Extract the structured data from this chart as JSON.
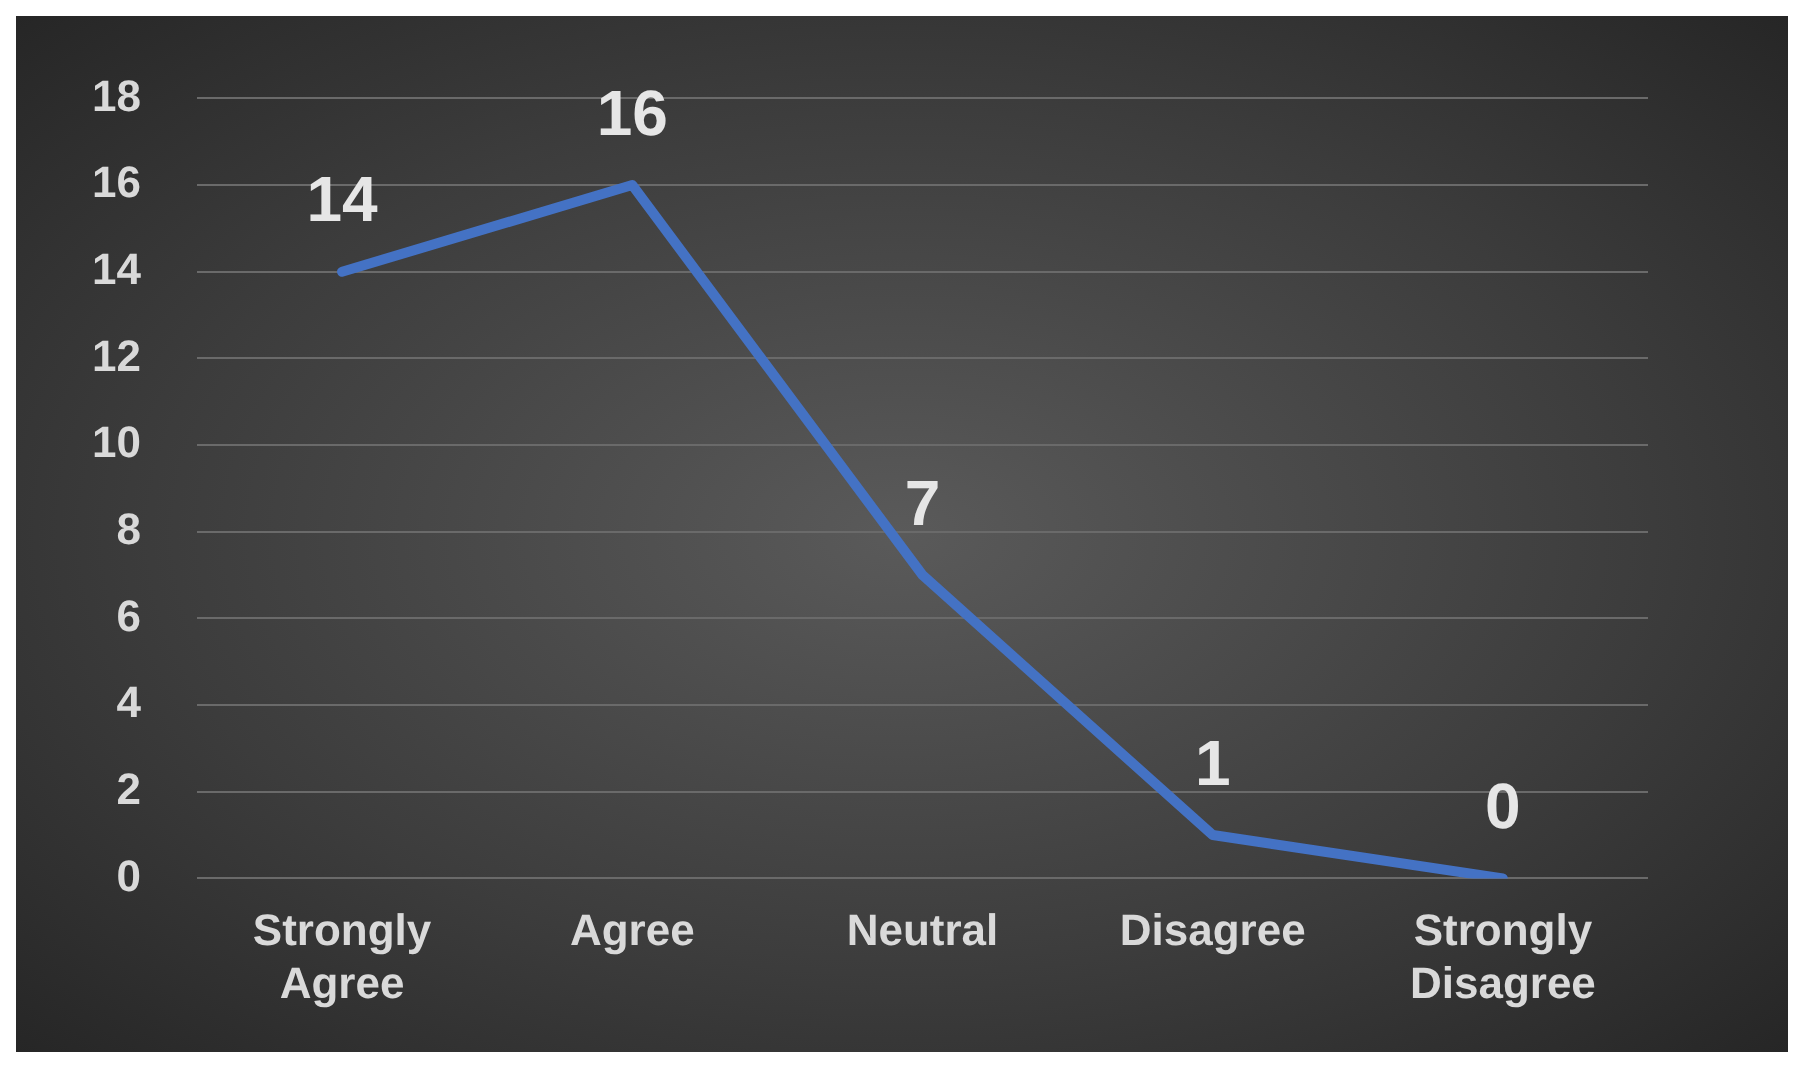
{
  "chart_data": {
    "type": "line",
    "categories": [
      "Strongly Agree",
      "Agree",
      "Neutral",
      "Disagree",
      "Strongly Disagree"
    ],
    "values": [
      14,
      16,
      7,
      1,
      0
    ],
    "color": "#4472c4",
    "ylim": [
      0,
      18
    ],
    "yticks": [
      0,
      2,
      4,
      6,
      8,
      10,
      12,
      14,
      16,
      18
    ],
    "grid": "y",
    "data_labels": true,
    "marker": "none",
    "line_style": "solid",
    "legend": false
  }
}
